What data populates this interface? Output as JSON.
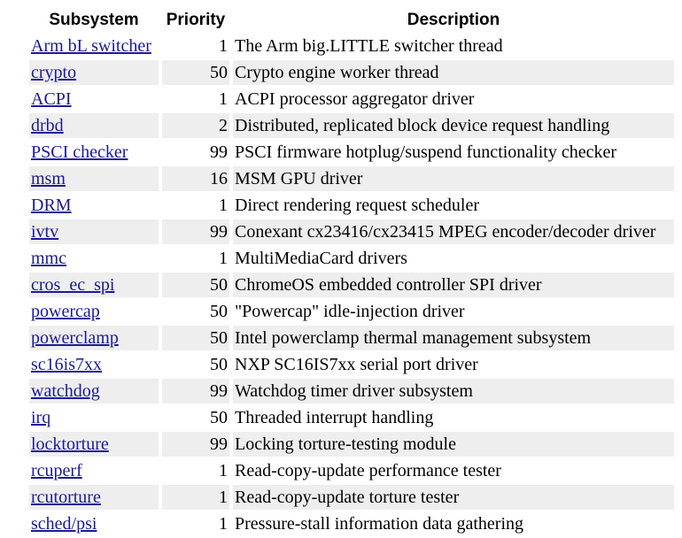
{
  "table": {
    "headers": {
      "subsystem": "Subsystem",
      "priority": "Priority",
      "description": "Description"
    },
    "rows": [
      {
        "subsystem": "Arm bL switcher",
        "priority": "1",
        "description": "The Arm big.LITTLE switcher thread"
      },
      {
        "subsystem": "crypto",
        "priority": "50",
        "description": "Crypto engine worker thread"
      },
      {
        "subsystem": "ACPI",
        "priority": "1",
        "description": "ACPI processor aggregator driver"
      },
      {
        "subsystem": "drbd",
        "priority": "2",
        "description": "Distributed, replicated block device request handling"
      },
      {
        "subsystem": "PSCI checker",
        "priority": "99",
        "description": "PSCI firmware hotplug/suspend functionality checker"
      },
      {
        "subsystem": "msm",
        "priority": "16",
        "description": "MSM GPU driver"
      },
      {
        "subsystem": "DRM",
        "priority": "1",
        "description": "Direct rendering request scheduler"
      },
      {
        "subsystem": "ivtv",
        "priority": "99",
        "description": "Conexant cx23416/cx23415 MPEG encoder/decoder driver"
      },
      {
        "subsystem": "mmc",
        "priority": "1",
        "description": "MultiMediaCard drivers"
      },
      {
        "subsystem": "cros_ec_spi",
        "priority": "50",
        "description": "ChromeOS embedded controller SPI driver"
      },
      {
        "subsystem": "powercap",
        "priority": "50",
        "description": "\"Powercap\" idle-injection driver"
      },
      {
        "subsystem": "powerclamp",
        "priority": "50",
        "description": "Intel powerclamp thermal management subsystem"
      },
      {
        "subsystem": "sc16is7xx",
        "priority": "50",
        "description": "NXP SC16IS7xx serial port driver"
      },
      {
        "subsystem": "watchdog",
        "priority": "99",
        "description": "Watchdog timer driver subsystem"
      },
      {
        "subsystem": "irq",
        "priority": "50",
        "description": "Threaded interrupt handling"
      },
      {
        "subsystem": "locktorture",
        "priority": "99",
        "description": "Locking torture-testing module"
      },
      {
        "subsystem": "rcuperf",
        "priority": "1",
        "description": "Read-copy-update performance tester"
      },
      {
        "subsystem": "rcutorture",
        "priority": "1",
        "description": "Read-copy-update torture tester"
      },
      {
        "subsystem": "sched/psi",
        "priority": "1",
        "description": "Pressure-stall information data gathering"
      }
    ],
    "colors": {
      "link": "#1a1a99",
      "row_shade": "#eeeeee"
    }
  }
}
